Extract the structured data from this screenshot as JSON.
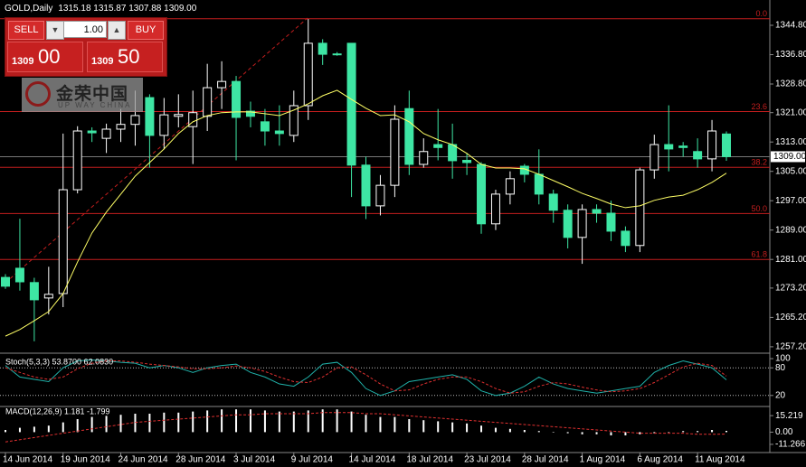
{
  "header": {
    "symbol": "GOLD,Daily",
    "ohlc": "1315.18 1315.87 1307.88 1309.00"
  },
  "trade_panel": {
    "sell": "SELL",
    "lots": "1.00",
    "buy": "BUY",
    "sell_prefix": "1309",
    "sell_pips": "00",
    "buy_prefix": "1309",
    "buy_pips": "50"
  },
  "watermark": {
    "brand": "金荣中国",
    "tagline": "UP WAY CHINA"
  },
  "chart_data": [
    {
      "type": "candlestick",
      "categories": [
        "14 Jun 2014",
        null,
        null,
        null,
        "19 Jun 2014",
        null,
        null,
        null,
        "24 Jun 2014",
        null,
        null,
        null,
        "28 Jun 2014",
        null,
        null,
        null,
        "3 Jul 2014",
        null,
        null,
        null,
        "9 Jul 2014",
        null,
        null,
        null,
        "14 Jul 2014",
        null,
        null,
        null,
        "18 Jul 2014",
        null,
        null,
        null,
        "23 Jul 2014",
        null,
        null,
        null,
        "28 Jul 2014",
        null,
        null,
        null,
        "1 Aug 2014",
        null,
        null,
        null,
        "6 Aug 2014",
        null,
        null,
        null,
        "11 Aug 2014",
        null,
        null
      ],
      "open": [
        1276.1,
        1278.6,
        1274.7,
        1270.5,
        1271.7,
        1300.0,
        1316.0,
        1314.0,
        1316.5,
        1317.8,
        1325.1,
        1314.8,
        1320.0,
        1317.2,
        1320.0,
        1327.8,
        1329.5,
        1321.4,
        1318.5,
        1316.0,
        1314.8,
        1322.9,
        1339.9,
        1337.0,
        1339.9,
        1306.7,
        1295.6,
        1301.2,
        1322.1,
        1306.9,
        1312.3,
        1312.3,
        1308.0,
        1306.9,
        1290.7,
        1298.8,
        1306.4,
        1304.2,
        1298.8,
        1294.4,
        1287.0,
        1294.6,
        1293.6,
        1288.7,
        1284.8,
        1305.4,
        1312.3,
        1311.9,
        1310.4,
        1308.4,
        1315.18
      ],
      "high": [
        1277,
        1292.1,
        1276,
        1279,
        1315.3,
        1317.3,
        1317,
        1318,
        1322,
        1327,
        1326,
        1325,
        1326,
        1327,
        1334.3,
        1335,
        1331,
        1324,
        1322,
        1323,
        1327,
        1346.5,
        1341,
        1337.5,
        1340,
        1309,
        1304,
        1323,
        1327,
        1314,
        1322,
        1318,
        1310,
        1307.5,
        1300,
        1305,
        1307,
        1311,
        1300,
        1296,
        1296,
        1296,
        1297,
        1290,
        1306,
        1315,
        1323,
        1313,
        1314,
        1319,
        1315.87
      ],
      "low": [
        1273,
        1272.5,
        1258.7,
        1266,
        1268,
        1299,
        1313,
        1310,
        1313,
        1312,
        1306,
        1311,
        1317,
        1307,
        1316,
        1322,
        1308,
        1317,
        1312,
        1312,
        1313,
        1319,
        1334,
        1336.5,
        1298,
        1292,
        1293,
        1298,
        1304,
        1306,
        1308,
        1303,
        1304,
        1288,
        1289,
        1296,
        1302,
        1296,
        1291,
        1284,
        1279.8,
        1291,
        1286,
        1283,
        1283,
        1303,
        1305,
        1309,
        1306,
        1305,
        1307.88
      ],
      "close": [
        1273.7,
        1274.9,
        1270.0,
        1271.5,
        1300.0,
        1316.0,
        1315.5,
        1316.5,
        1317.8,
        1320.2,
        1314.8,
        1320.4,
        1320.5,
        1321.0,
        1327.8,
        1329.5,
        1319.7,
        1320.0,
        1316.0,
        1315.3,
        1322.9,
        1339.9,
        1336.9,
        1336.8,
        1306.7,
        1295.6,
        1301.2,
        1319.2,
        1306.9,
        1310.4,
        1311.5,
        1307.9,
        1307.4,
        1290.7,
        1298.8,
        1303.0,
        1304.2,
        1298.8,
        1294.4,
        1287.0,
        1294.6,
        1293.6,
        1288.7,
        1284.8,
        1305.4,
        1312.3,
        1311.1,
        1311.5,
        1308.4,
        1316.0,
        1309.0
      ],
      "up_color": "#000000",
      "down_color": "#3ee6a4",
      "outline_color": "#ffffff",
      "overlay_line": {
        "color": "#ffff66",
        "values": [
          1260.1,
          1261.9,
          1264.3,
          1266.8,
          1271.7,
          1280.3,
          1288.2,
          1293.9,
          1298.8,
          1303.7,
          1307.4,
          1311.1,
          1315.3,
          1318.5,
          1320.2,
          1321.0,
          1321.2,
          1321.2,
          1320.7,
          1320.2,
          1321.7,
          1323.4,
          1325.6,
          1327.1,
          1324.6,
          1322.2,
          1320.2,
          1320.4,
          1318.5,
          1315.3,
          1313.6,
          1312.3,
          1309.9,
          1306.9,
          1305.9,
          1305.9,
          1305.7,
          1304.2,
          1302.5,
          1300.8,
          1299.0,
          1297.6,
          1296.1,
          1295.1,
          1295.6,
          1297.1,
          1298.0,
          1298.5,
          1300.0,
          1302.0,
          1304.5
        ]
      },
      "levels": [
        {
          "value": 1346.6,
          "label": "0.0"
        },
        {
          "value": 1321.3,
          "label": "23.6"
        },
        {
          "value": 1306.1,
          "label": "38.2"
        },
        {
          "value": 1293.5,
          "label": "50.0"
        },
        {
          "value": 1281.0,
          "label": "61.8"
        }
      ],
      "level_color": "#c41e1e",
      "last_price": {
        "value": 1309,
        "label": "1309.00"
      },
      "ylim": [
        1255.7,
        1351.2
      ],
      "yticks": [
        {
          "value": 1344.8,
          "label": "1344.80"
        },
        {
          "value": 1336.8,
          "label": "1336.80"
        },
        {
          "value": 1328.8,
          "label": "1328.80"
        },
        {
          "value": 1321,
          "label": "1321.00"
        },
        {
          "value": 1313,
          "label": "1313.00"
        },
        {
          "value": 1305,
          "label": "1305.00"
        },
        {
          "value": 1297,
          "label": "1297.00"
        },
        {
          "value": 1289,
          "label": "1289.00"
        },
        {
          "value": 1281,
          "label": "1281.00"
        },
        {
          "value": 1273.2,
          "label": "1273.20"
        },
        {
          "value": 1265.2,
          "label": "1265.20"
        },
        {
          "value": 1257.2,
          "label": "1257.20"
        }
      ]
    },
    {
      "type": "line",
      "title": "Stoch(5,3,3) 53.8700 62.0830",
      "series": [
        {
          "color": "#20b2aa",
          "values": [
            85,
            60,
            55,
            50,
            80,
            95,
            97,
            95,
            92,
            90,
            80,
            85,
            80,
            70,
            80,
            85,
            88,
            70,
            60,
            45,
            40,
            60,
            88,
            92,
            70,
            35,
            20,
            30,
            50,
            55,
            60,
            65,
            55,
            30,
            20,
            25,
            40,
            60,
            45,
            35,
            30,
            25,
            30,
            35,
            40,
            70,
            85,
            95,
            88,
            80,
            53.87
          ]
        },
        {
          "color": "#e03030",
          "dashed": true,
          "values": [
            80,
            70,
            60,
            55,
            60,
            78,
            90,
            95,
            95,
            92,
            88,
            85,
            82,
            78,
            78,
            80,
            84,
            80,
            72,
            60,
            50,
            48,
            60,
            80,
            82,
            65,
            45,
            30,
            32,
            45,
            55,
            60,
            60,
            50,
            35,
            25,
            28,
            40,
            48,
            45,
            38,
            32,
            28,
            30,
            35,
            48,
            65,
            82,
            90,
            85,
            62.083
          ]
        }
      ],
      "ylim": [
        0,
        100
      ],
      "yticks": [
        100,
        80,
        20
      ],
      "grid": true
    },
    {
      "type": "bar",
      "title": "MACD(12,26,9) 1.181 -1.799",
      "color": "#ffffff",
      "values": [
        2,
        4,
        5,
        6,
        9,
        12,
        14,
        15,
        16,
        17,
        17,
        18,
        18,
        19,
        20,
        21,
        21,
        21,
        20,
        19,
        19,
        20,
        21,
        21,
        19,
        16,
        14,
        14,
        12,
        11,
        10,
        9,
        8,
        6,
        4,
        3,
        2,
        1,
        0,
        -1,
        -2,
        -2,
        -3,
        -3,
        -2,
        -1,
        0,
        1,
        1,
        2,
        1.181
      ],
      "signal": {
        "color": "#e03030",
        "values": [
          -9,
          -7,
          -5,
          -3,
          -1,
          1,
          3,
          5,
          7,
          9,
          10,
          11,
          12,
          13,
          14,
          15,
          16,
          16,
          17,
          17,
          17,
          17,
          18,
          18,
          18,
          17,
          17,
          16,
          15,
          14,
          13,
          12,
          11,
          10,
          9,
          8,
          7,
          6,
          5,
          4,
          3,
          2,
          1,
          0,
          -1,
          -1,
          -1,
          -1,
          -2,
          -2,
          -1.799
        ]
      },
      "ylim": [
        -18,
        22
      ],
      "yticks": [
        15.219,
        {
          "value": 0,
          "label": "0.00"
        },
        -11.266
      ]
    }
  ]
}
